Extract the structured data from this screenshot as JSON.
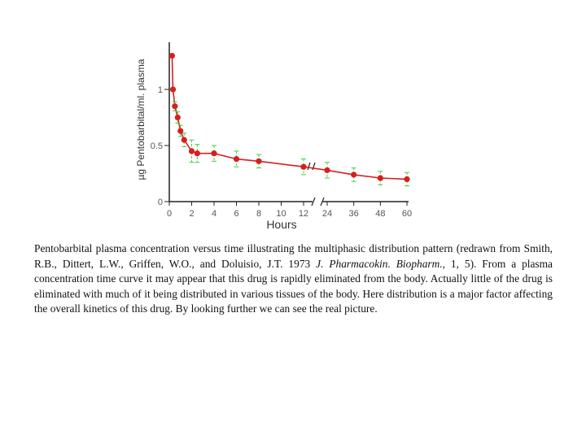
{
  "chart_data": {
    "type": "scatter",
    "title": "",
    "xlabel": "Hours",
    "ylabel": "µg Pentobarbital/ml. plasma",
    "x_tick_labels_left": [
      "0",
      "2",
      "4",
      "6",
      "8",
      "10",
      "12"
    ],
    "x_tick_labels_right": [
      "24",
      "36",
      "48",
      "60"
    ],
    "y_tick_labels": [
      "0",
      "0.5",
      "1"
    ],
    "ylim": [
      0,
      1.45
    ],
    "x_axis_break": true,
    "series": [
      {
        "marker_color": "#d81e1e",
        "line_color": "#d81e1e",
        "error_bar_color": "#44cc44",
        "points": [
          {
            "x": 0.25,
            "y": 1.3,
            "err": 0
          },
          {
            "x": 0.33,
            "y": 1.0,
            "err": 0
          },
          {
            "x": 0.5,
            "y": 0.85,
            "err": 0.04
          },
          {
            "x": 0.75,
            "y": 0.75,
            "err": 0.05
          },
          {
            "x": 1.0,
            "y": 0.63,
            "err": 0.05
          },
          {
            "x": 1.33,
            "y": 0.55,
            "err": 0.06
          },
          {
            "x": 2.0,
            "y": 0.45,
            "err": 0.1
          },
          {
            "x": 2.5,
            "y": 0.43,
            "err": 0.08
          },
          {
            "x": 4.0,
            "y": 0.43,
            "err": 0.07
          },
          {
            "x": 6.0,
            "y": 0.38,
            "err": 0.07
          },
          {
            "x": 8.0,
            "y": 0.36,
            "err": 0.06
          },
          {
            "x": 12.0,
            "y": 0.31,
            "err": 0.07
          },
          {
            "x": 24.0,
            "y": 0.28,
            "err": 0.07
          },
          {
            "x": 36.0,
            "y": 0.24,
            "err": 0.06
          },
          {
            "x": 48.0,
            "y": 0.21,
            "err": 0.06
          },
          {
            "x": 60.0,
            "y": 0.2,
            "err": 0.06
          }
        ]
      }
    ]
  },
  "caption": {
    "part1": "Pentobarbital plasma concentration versus time illustrating the multiphasic distribution pattern (redrawn from Smith, R.B., Dittert, L.W., Griffen, W.O., and Doluisio, J.T. 1973 ",
    "journal": "J. Pharmacokin. Biopharm.",
    "part2": ", 1, 5). From a plasma concentration time curve it may appear that this drug is rapidly eliminated from the body. Actually little of the drug is eliminated with much of it being distributed in various tissues of the body. Here distribution is a major factor affecting the overall kinetics of this drug. By looking further we can see the real picture."
  }
}
